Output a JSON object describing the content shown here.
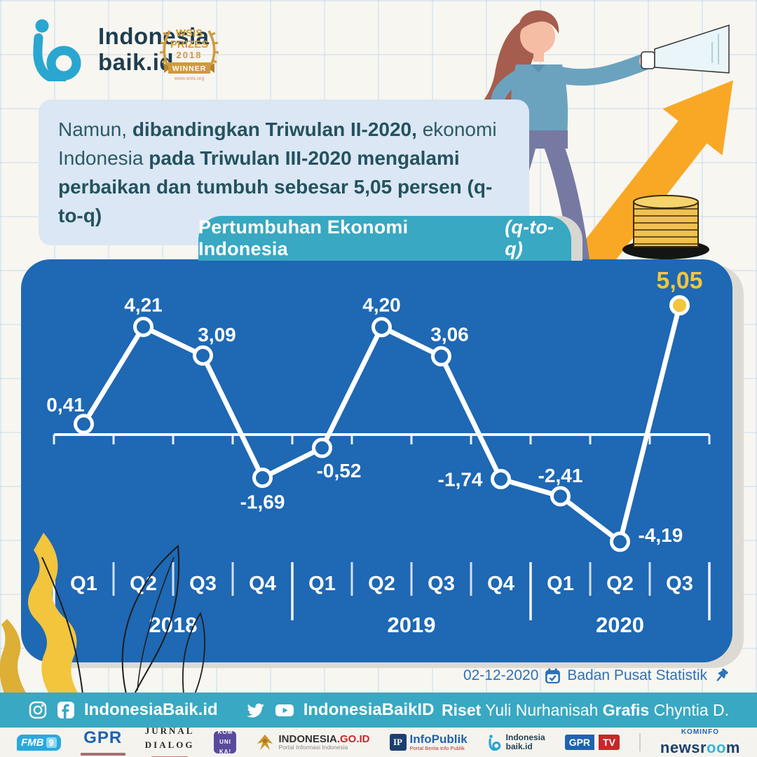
{
  "brand": {
    "name_line1": "Indonesia",
    "name_line2": "baik.id"
  },
  "award_badge": {
    "org": "WSIS",
    "type": "PRIZES",
    "year": "2018",
    "title": "WINNER",
    "url": "www.wsis.org"
  },
  "message": {
    "segments": [
      {
        "text": "Namun, ",
        "bold": false
      },
      {
        "text": "dibandingkan Triwulan II-2020,",
        "bold": true
      },
      {
        "text": " ekonomi Indonesia ",
        "bold": false
      },
      {
        "text": "pada Triwulan III-2020 mengalami perbaikan dan tumbuh sebesar 5,05 persen (q-to-q)",
        "bold": true
      }
    ]
  },
  "chart_data": {
    "type": "line",
    "title_main": "Pertumbuhan Ekonomi Indonesia",
    "title_suffix_italic": "(q-to-q)",
    "categories": [
      "Q1",
      "Q2",
      "Q3",
      "Q4",
      "Q1",
      "Q2",
      "Q3",
      "Q4",
      "Q1",
      "Q2",
      "Q3"
    ],
    "year_groups": [
      {
        "label": "2018",
        "count": 4
      },
      {
        "label": "2019",
        "count": 4
      },
      {
        "label": "2020",
        "count": 3
      }
    ],
    "values": [
      0.41,
      4.21,
      3.09,
      -1.69,
      -0.52,
      4.2,
      3.06,
      -1.74,
      -2.41,
      -4.19,
      5.05
    ],
    "point_labels": [
      "0,41",
      "4,21",
      "3,09",
      "-1,69",
      "-0,52",
      "4,20",
      "3,06",
      "-1,74",
      "-2,41",
      "-4,19",
      "5,05"
    ],
    "unit": "persen (q-to-q)",
    "highlight_index": 10,
    "ylim": [
      -5.5,
      6.5
    ],
    "grid": false,
    "legend": "none",
    "colors": {
      "line": "#FFFFFF",
      "panel": "#1E68B4",
      "highlight": "#F2C53D"
    },
    "year_boundary_ticks": [
      0,
      4,
      8,
      11
    ],
    "label_layout": [
      [
        -26,
        -18,
        "middle"
      ],
      [
        0,
        -22,
        "middle"
      ],
      [
        20,
        -20,
        "middle"
      ],
      [
        0,
        44,
        "middle"
      ],
      [
        24,
        42,
        "middle"
      ],
      [
        0,
        -22,
        "middle"
      ],
      [
        12,
        -22,
        "middle"
      ],
      [
        -26,
        10,
        "end"
      ],
      [
        0,
        -20,
        "middle"
      ],
      [
        26,
        0,
        "start"
      ],
      [
        0,
        -24,
        "middle"
      ]
    ]
  },
  "source": {
    "date": "02-12-2020",
    "name": "Badan Pusat Statistik"
  },
  "social_bar": {
    "fb_ig_handle": "IndonesiaBaik.id",
    "tw_yt_handle": "IndonesiaBaikID",
    "credits": {
      "riset_label": "Riset",
      "riset_name": " Yuli Nurhanisah ",
      "grafis_label": "Grafis",
      "grafis_name": " Chyntia D."
    }
  },
  "partners": {
    "fmb9": {
      "text": "FMB",
      "num": "9"
    },
    "gpr": {
      "name": "GPR"
    },
    "jurnal_dialog": {
      "line1": "JURNAL",
      "line2": "DIALOG"
    },
    "komunika": {
      "line1": "KOM",
      "line2": "UNI",
      "line3": "KA!"
    },
    "indonesia_go_id": {
      "name": "INDONESIA",
      "tld": ".GO.ID",
      "sub": "Portal Informasi Indonesia"
    },
    "infopublik": {
      "abbr": "IP",
      "name": "InfoPublik",
      "sub": "Portal Berita Info Publik"
    },
    "indonesiabaik": {
      "line1": "Indonesia",
      "line2": "baik.id"
    },
    "gpr_tv": {
      "text": "GPR",
      "tv": "TV"
    },
    "kominfo_newsroom": {
      "top": "KOMINFO",
      "part1": "newsr",
      "part2": "oo",
      "part3": "m"
    }
  }
}
